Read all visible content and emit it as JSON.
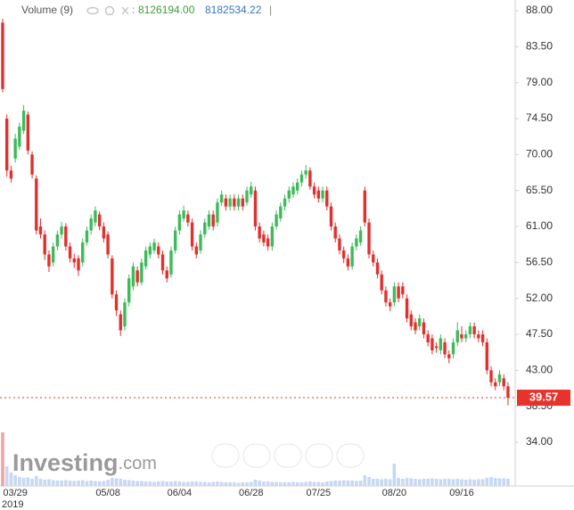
{
  "header": {
    "study_label": "Volume (9)",
    "colon": ":",
    "volume_value": "8126194.00",
    "volume_average": "8182534.22",
    "separator": "|"
  },
  "watermark": {
    "brand": "Investing",
    "suffix": ".com"
  },
  "chart_data": {
    "type": "candlestick",
    "categories": [
      null,
      null,
      null,
      "03/29",
      null,
      null,
      null,
      null,
      null,
      null,
      null,
      null,
      null,
      null,
      null,
      null,
      null,
      null,
      null,
      null,
      null,
      null,
      null,
      null,
      null,
      "05/08",
      null,
      null,
      null,
      null,
      null,
      null,
      null,
      null,
      null,
      null,
      null,
      null,
      null,
      null,
      null,
      null,
      "06/04",
      null,
      null,
      null,
      null,
      null,
      null,
      null,
      null,
      null,
      null,
      null,
      null,
      null,
      null,
      null,
      null,
      "06/28",
      null,
      null,
      null,
      null,
      null,
      null,
      null,
      null,
      null,
      null,
      null,
      null,
      null,
      null,
      null,
      "07/25",
      null,
      null,
      null,
      null,
      null,
      null,
      null,
      null,
      null,
      null,
      null,
      null,
      null,
      null,
      null,
      null,
      null,
      "08/20",
      null,
      null,
      null,
      null,
      null,
      null,
      null,
      null,
      null,
      null,
      null,
      null,
      null,
      null,
      null,
      "09/16",
      null,
      null,
      null,
      null,
      null,
      null,
      null,
      null,
      null,
      null,
      null
    ],
    "year_label": "2019",
    "open": [
      86.5,
      74.5,
      68.0,
      69.5,
      71.0,
      73.0,
      75.0,
      70.0,
      67.0,
      61.0,
      60.0,
      57.5,
      56.5,
      58.5,
      60.0,
      61.0,
      58.5,
      57.0,
      57.0,
      56.5,
      59.0,
      60.5,
      61.5,
      62.5,
      61.0,
      60.0,
      57.0,
      52.5,
      50.0,
      48.5,
      51.5,
      53.5,
      55.5,
      54.0,
      56.0,
      57.5,
      58.0,
      58.5,
      57.5,
      55.5,
      55.0,
      58.0,
      60.5,
      62.0,
      62.5,
      61.5,
      58.5,
      58.0,
      60.0,
      61.0,
      62.5,
      61.5,
      64.0,
      64.5,
      63.5,
      64.5,
      63.5,
      64.5,
      64.0,
      65.0,
      65.5,
      61.0,
      60.0,
      59.5,
      58.5,
      61.0,
      62.0,
      63.5,
      64.5,
      65.0,
      65.5,
      66.5,
      67.5,
      68.0,
      66.0,
      65.5,
      64.5,
      65.5,
      63.5,
      61.0,
      59.5,
      58.0,
      57.0,
      56.0,
      58.5,
      59.0,
      65.5,
      61.5,
      57.5,
      56.5,
      55.0,
      53.0,
      51.5,
      51.5,
      53.5,
      53.5,
      52.0,
      50.0,
      49.0,
      48.5,
      49.0,
      47.5,
      47.0,
      46.0,
      45.5,
      46.5,
      45.0,
      45.0,
      46.5,
      47.5,
      47.0,
      47.5,
      48.5,
      47.5,
      47.5,
      46.5,
      43.0,
      41.5,
      41.5,
      42.0,
      41.0
    ],
    "high": [
      87.0,
      75.0,
      68.6,
      72.6,
      74.0,
      76.2,
      75.4,
      70.4,
      67.4,
      62.0,
      60.5,
      58.0,
      59.0,
      60.5,
      61.6,
      61.4,
      59.0,
      57.6,
      57.4,
      59.5,
      61.0,
      62.5,
      63.5,
      62.9,
      61.5,
      60.4,
      57.4,
      53.0,
      50.5,
      52.0,
      55.0,
      56.5,
      56.0,
      57.0,
      58.5,
      59.0,
      59.5,
      59.0,
      58.0,
      56.0,
      58.5,
      61.0,
      63.0,
      63.6,
      63.0,
      62.0,
      59.0,
      60.5,
      62.0,
      63.0,
      63.0,
      64.5,
      65.5,
      65.0,
      65.0,
      65.0,
      65.0,
      65.0,
      66.0,
      66.6,
      66.0,
      61.5,
      60.5,
      60.0,
      61.5,
      63.0,
      64.0,
      65.0,
      66.0,
      66.5,
      67.0,
      68.0,
      68.7,
      68.4,
      66.5,
      66.0,
      66.0,
      66.0,
      64.0,
      61.5,
      60.0,
      58.5,
      57.5,
      59.0,
      60.0,
      61.0,
      66.0,
      62.0,
      58.0,
      57.0,
      55.5,
      53.5,
      52.0,
      54.0,
      54.0,
      54.0,
      52.5,
      50.5,
      49.5,
      50.0,
      49.5,
      48.0,
      47.5,
      46.5,
      47.5,
      47.0,
      45.5,
      47.0,
      49.0,
      48.5,
      48.0,
      49.0,
      49.0,
      48.0,
      48.0,
      47.0,
      43.5,
      42.0,
      43.0,
      42.5,
      41.5
    ],
    "low": [
      77.8,
      67.2,
      66.5,
      69.0,
      70.6,
      72.6,
      70.0,
      67.0,
      60.0,
      59.5,
      56.8,
      55.3,
      56.0,
      58.0,
      59.5,
      58.0,
      56.5,
      55.8,
      54.8,
      56.0,
      58.6,
      60.0,
      61.0,
      60.5,
      59.0,
      57.0,
      52.0,
      49.8,
      47.3,
      48.0,
      51.0,
      53.0,
      53.5,
      53.6,
      55.6,
      57.0,
      57.6,
      57.0,
      55.0,
      54.0,
      54.6,
      57.6,
      60.0,
      61.6,
      61.0,
      58.0,
      57.0,
      57.6,
      59.6,
      60.6,
      60.5,
      61.0,
      63.6,
      63.0,
      63.0,
      63.0,
      63.0,
      63.0,
      63.6,
      64.6,
      60.5,
      59.0,
      58.5,
      58.0,
      58.0,
      60.6,
      61.6,
      63.0,
      64.0,
      64.6,
      65.0,
      66.0,
      67.0,
      65.6,
      64.5,
      64.0,
      64.0,
      63.0,
      60.5,
      59.0,
      57.5,
      56.4,
      55.5,
      55.6,
      58.0,
      58.6,
      61.0,
      57.0,
      56.0,
      54.5,
      52.5,
      51.0,
      50.4,
      51.0,
      51.5,
      52.0,
      49.0,
      48.0,
      47.5,
      48.0,
      47.0,
      46.0,
      45.0,
      45.2,
      45.0,
      44.5,
      43.9,
      44.5,
      46.0,
      46.5,
      46.5,
      47.0,
      47.0,
      46.5,
      46.0,
      42.5,
      41.0,
      40.5,
      41.0,
      40.5,
      38.6
    ],
    "close": [
      78.2,
      68.0,
      67.0,
      72.0,
      73.5,
      75.5,
      70.5,
      67.5,
      60.5,
      60.0,
      57.5,
      56.0,
      58.5,
      60.0,
      61.0,
      58.5,
      57.0,
      56.5,
      55.5,
      59.0,
      60.5,
      62.0,
      63.0,
      61.0,
      59.5,
      57.5,
      52.5,
      50.5,
      48.0,
      51.5,
      54.5,
      56.0,
      54.0,
      56.5,
      58.0,
      58.5,
      59.0,
      57.5,
      55.5,
      54.5,
      58.0,
      60.5,
      62.5,
      63.0,
      61.5,
      58.5,
      57.5,
      60.0,
      61.5,
      62.5,
      61.0,
      64.0,
      65.0,
      63.5,
      64.5,
      63.5,
      64.5,
      63.5,
      65.5,
      66.0,
      61.0,
      59.5,
      59.0,
      58.5,
      61.0,
      62.5,
      63.5,
      64.5,
      65.5,
      66.0,
      66.5,
      67.5,
      68.0,
      66.0,
      65.0,
      64.5,
      65.5,
      63.5,
      61.0,
      59.5,
      58.0,
      57.0,
      56.0,
      58.5,
      59.5,
      60.5,
      61.5,
      57.5,
      56.5,
      55.0,
      53.0,
      51.5,
      51.0,
      53.5,
      52.0,
      52.5,
      49.5,
      48.5,
      48.0,
      49.5,
      47.5,
      46.5,
      45.5,
      45.8,
      47.0,
      45.0,
      44.5,
      46.5,
      48.0,
      47.0,
      47.5,
      48.5,
      47.5,
      47.0,
      46.5,
      43.0,
      41.5,
      41.0,
      42.5,
      41.0,
      39.57
    ],
    "volume": [
      60000000,
      22000000,
      15000000,
      12000000,
      10000000,
      9000000,
      9500000,
      8000000,
      11000000,
      8000000,
      7000000,
      7500000,
      6500000,
      6000000,
      6000000,
      6500000,
      6000000,
      5500000,
      6000000,
      6500000,
      5500000,
      6000000,
      5500000,
      5000000,
      5500000,
      7000000,
      9000000,
      8500000,
      8000000,
      7000000,
      6500000,
      6000000,
      5500000,
      5500000,
      5000000,
      5000000,
      4500000,
      5000000,
      5500000,
      5000000,
      5000000,
      5500000,
      5000000,
      4500000,
      4500000,
      5000000,
      5000000,
      4500000,
      4500000,
      4000000,
      4500000,
      5000000,
      4500000,
      4000000,
      4000000,
      4000000,
      3500000,
      4000000,
      4000000,
      4500000,
      7000000,
      6000000,
      5000000,
      5000000,
      4500000,
      4500000,
      4000000,
      4000000,
      4000000,
      4500000,
      4000000,
      4000000,
      4500000,
      5000000,
      4500000,
      4500000,
      4000000,
      5000000,
      5500000,
      6000000,
      6000000,
      6500000,
      6000000,
      6000000,
      5500000,
      6000000,
      12000000,
      10000000,
      8000000,
      8000000,
      7500000,
      8000000,
      7500000,
      25000000,
      9000000,
      8000000,
      9000000,
      8500000,
      8000000,
      7500000,
      8000000,
      8000000,
      8500000,
      8000000,
      7500000,
      8000000,
      8000000,
      7500000,
      8000000,
      7500000,
      7000000,
      7500000,
      7000000,
      7500000,
      7500000,
      9000000,
      10000000,
      9000000,
      8500000,
      8500000,
      8126194
    ],
    "up_color": "#3dbb5a",
    "down_color": "#e2302e",
    "volume_color": "#c6d8f2",
    "first_volume_color": "#f2a3a3",
    "last_price": 39.57,
    "last_price_color": "#e8332c",
    "ylim": [
      28.53,
      89.34
    ],
    "yticks": [
      {
        "value": 88,
        "label": "88.00"
      },
      {
        "value": 83.5,
        "label": "83.50"
      },
      {
        "value": 79,
        "label": "79.00"
      },
      {
        "value": 74.5,
        "label": "74.50"
      },
      {
        "value": 70,
        "label": "70.00"
      },
      {
        "value": 65.5,
        "label": "65.50"
      },
      {
        "value": 61,
        "label": "61.00"
      },
      {
        "value": 56.5,
        "label": "56.50"
      },
      {
        "value": 52,
        "label": "52.00"
      },
      {
        "value": 47.5,
        "label": "47.50"
      },
      {
        "value": 43,
        "label": "43.00"
      },
      {
        "value": 38.5,
        "label": "38.50"
      },
      {
        "value": 34,
        "label": "34.00"
      }
    ],
    "grid": false
  }
}
